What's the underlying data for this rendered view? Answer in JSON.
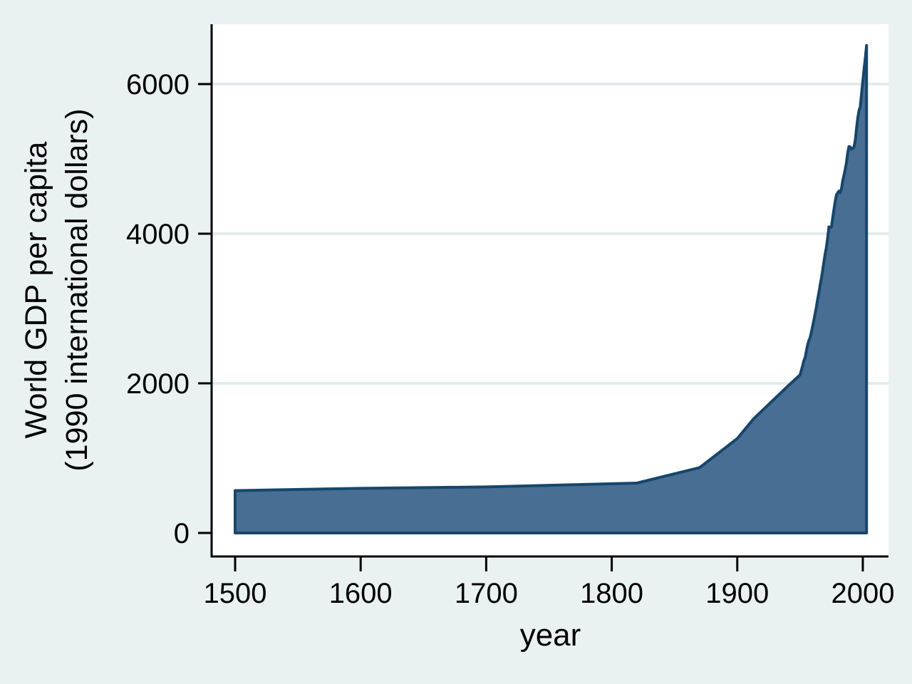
{
  "chart_data": {
    "type": "area",
    "title": "",
    "xlabel": "year",
    "ylabel_line1": "World GDP per capita",
    "ylabel_line2": "(1990 international dollars)",
    "series_name": "World GDP per capita (1990 international dollars)",
    "xlim": [
      1481,
      2020
    ],
    "ylim": [
      0,
      6800
    ],
    "xticks": [
      1500,
      1600,
      1700,
      1800,
      1900,
      2000
    ],
    "yticks": [
      0,
      2000,
      4000,
      6000
    ],
    "grid": "horizontal-at-yticks",
    "legend": "none",
    "points": [
      [
        1500,
        566
      ],
      [
        1600,
        596
      ],
      [
        1700,
        615
      ],
      [
        1820,
        667
      ],
      [
        1870,
        873
      ],
      [
        1900,
        1262
      ],
      [
        1913,
        1526
      ],
      [
        1940,
        1958
      ],
      [
        1950,
        2113
      ],
      [
        1951,
        2170
      ],
      [
        1952,
        2230
      ],
      [
        1953,
        2300
      ],
      [
        1954,
        2340
      ],
      [
        1955,
        2430
      ],
      [
        1956,
        2510
      ],
      [
        1957,
        2570
      ],
      [
        1958,
        2610
      ],
      [
        1959,
        2680
      ],
      [
        1960,
        2760
      ],
      [
        1961,
        2840
      ],
      [
        1962,
        2930
      ],
      [
        1963,
        3020
      ],
      [
        1964,
        3120
      ],
      [
        1965,
        3210
      ],
      [
        1966,
        3310
      ],
      [
        1967,
        3400
      ],
      [
        1968,
        3510
      ],
      [
        1969,
        3620
      ],
      [
        1970,
        3730
      ],
      [
        1971,
        3820
      ],
      [
        1972,
        3940
      ],
      [
        1973,
        4091
      ],
      [
        1974,
        4082
      ],
      [
        1975,
        4088
      ],
      [
        1976,
        4210
      ],
      [
        1977,
        4320
      ],
      [
        1978,
        4430
      ],
      [
        1979,
        4520
      ],
      [
        1980,
        4545
      ],
      [
        1981,
        4570
      ],
      [
        1982,
        4550
      ],
      [
        1983,
        4600
      ],
      [
        1984,
        4710
      ],
      [
        1985,
        4780
      ],
      [
        1986,
        4860
      ],
      [
        1987,
        4950
      ],
      [
        1988,
        5085
      ],
      [
        1989,
        5165
      ],
      [
        1990,
        5160
      ],
      [
        1991,
        5130
      ],
      [
        1992,
        5140
      ],
      [
        1993,
        5160
      ],
      [
        1994,
        5250
      ],
      [
        1995,
        5400
      ],
      [
        1996,
        5550
      ],
      [
        1997,
        5650
      ],
      [
        1998,
        5695
      ],
      [
        1999,
        5870
      ],
      [
        2000,
        6040
      ],
      [
        2001,
        6200
      ],
      [
        2002,
        6350
      ],
      [
        2003,
        6516
      ]
    ],
    "colors": {
      "background": "#EAF1F3",
      "plot_background": "#FFFFFF",
      "gridline": "#E2ECEF",
      "axis": "#000000",
      "area_fill": "#486E93",
      "area_stroke": "#17466B"
    }
  }
}
